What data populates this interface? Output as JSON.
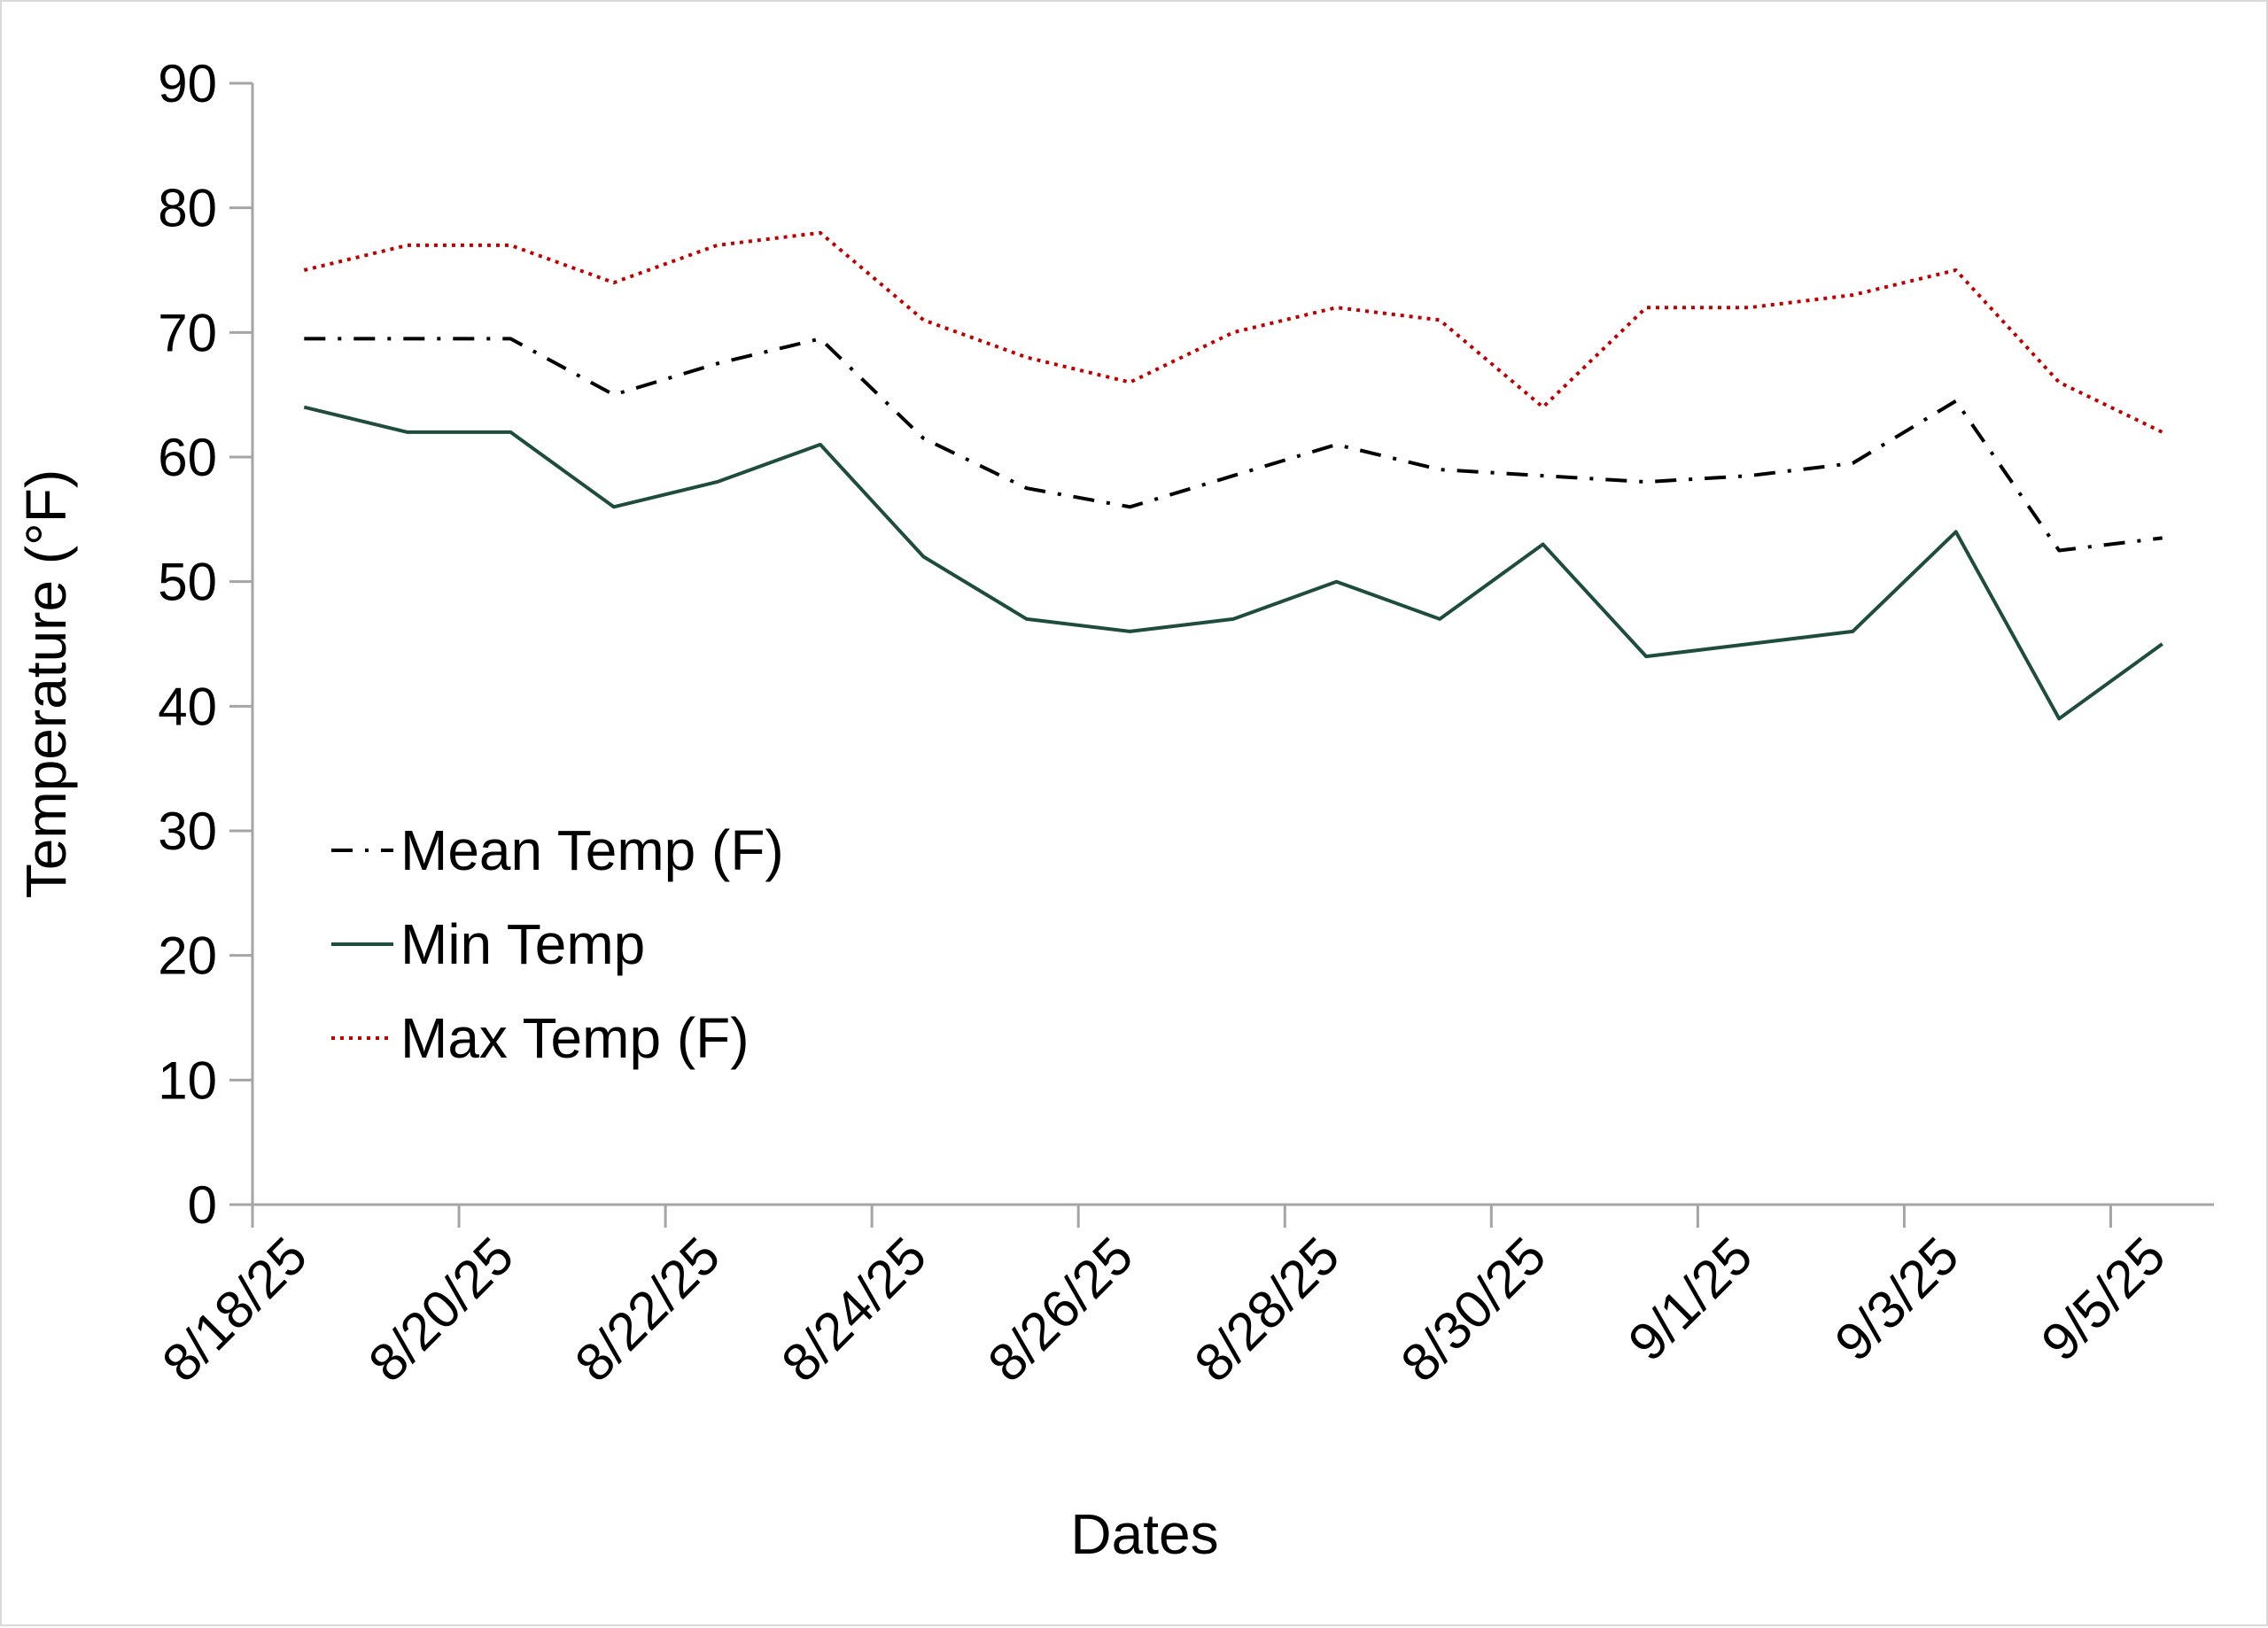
{
  "chart_data": {
    "type": "line",
    "title": "",
    "xlabel": "Dates",
    "ylabel": "Temperature (°F)",
    "ylim": [
      0,
      90
    ],
    "yticks": [
      0,
      10,
      20,
      30,
      40,
      50,
      60,
      70,
      80,
      90
    ],
    "x_start": "8/18/25",
    "x_end": "9/5/25",
    "xtick_labels": [
      "8/18/25",
      "8/20/25",
      "8/22/25",
      "8/24/25",
      "8/26/25",
      "8/28/25",
      "8/30/25",
      "9/1/25",
      "9/3/25",
      "9/5/25"
    ],
    "grid": false,
    "legend_position": "left-center",
    "x": [
      "8/18/25",
      "8/19/25",
      "8/20/25",
      "8/21/25",
      "8/22/25",
      "8/23/25",
      "8/24/25",
      "8/25/25",
      "8/26/25",
      "8/27/25",
      "8/28/25",
      "8/29/25",
      "8/30/25",
      "8/31/25",
      "9/1/25",
      "9/2/25",
      "9/3/25",
      "9/4/25",
      "9/5/25"
    ],
    "series": [
      {
        "name": "Mean Temp (F)",
        "color": "#000000",
        "style": "dash-dot",
        "values": [
          69.5,
          69.5,
          69.5,
          65,
          67.5,
          69.5,
          61.5,
          57.5,
          56,
          58.5,
          61,
          59,
          58.5,
          58,
          58.5,
          59.5,
          64.5,
          52.5,
          53.5
        ]
      },
      {
        "name": "Min Temp",
        "color": "#1e4d3f",
        "style": "solid",
        "values": [
          64,
          62,
          62,
          56,
          58,
          61,
          52,
          47,
          46,
          47,
          50,
          47,
          53,
          44,
          45,
          46,
          54,
          39,
          45
        ]
      },
      {
        "name": "Max Temp (F)",
        "color": "#c00000",
        "style": "dotted",
        "values": [
          75,
          77,
          77,
          74,
          77,
          78,
          71,
          68,
          66,
          70,
          72,
          71,
          64,
          72,
          72,
          73,
          75,
          66,
          62
        ]
      }
    ]
  }
}
